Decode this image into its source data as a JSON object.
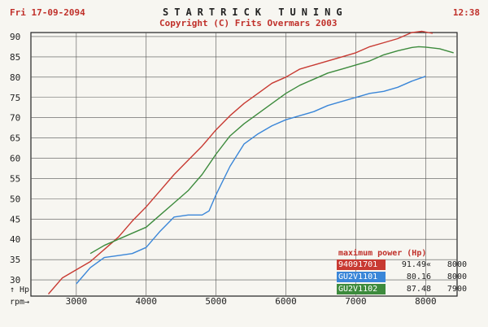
{
  "header": {
    "date": "Fri 17-09-2094",
    "time": "12:38",
    "title": "STARTRICK TUNING",
    "copyright": "Copyright (C) Frits Overmars 2003"
  },
  "chart_data": {
    "type": "line",
    "ylabel": "↑ Hp",
    "xlabel": "rpm→",
    "xlim": [
      2350,
      8450
    ],
    "ylim": [
      26,
      91
    ],
    "x_ticks": [
      3000,
      4000,
      5000,
      6000,
      7000,
      8000
    ],
    "y_ticks": [
      30,
      35,
      40,
      45,
      50,
      55,
      60,
      65,
      70,
      75,
      80,
      85,
      90
    ],
    "grid": true,
    "legend_placement": "bottom-right",
    "legend_title": "maximum power  (Hp)",
    "series": [
      {
        "name": "94091701",
        "max_power": "91.49«",
        "max_rpm": "8000",
        "color": "#c83a32",
        "x": [
          2600,
          2800,
          3000,
          3200,
          3400,
          3600,
          3800,
          4000,
          4200,
          4400,
          4600,
          4800,
          5000,
          5200,
          5400,
          5600,
          5800,
          6000,
          6200,
          6400,
          6600,
          6800,
          7000,
          7200,
          7400,
          7600,
          7800,
          7950,
          8100
        ],
        "y": [
          26.5,
          30.5,
          32.5,
          34.5,
          37.5,
          40.5,
          44.5,
          48,
          52,
          56,
          59.5,
          63,
          67,
          70.5,
          73.5,
          76,
          78.5,
          80,
          82,
          83,
          84,
          85,
          86,
          87.5,
          88.5,
          89.5,
          91,
          91.3,
          90.8
        ]
      },
      {
        "name": "GU2V1101",
        "max_power": "80.16",
        "max_rpm": "8000",
        "color": "#3a86d8",
        "x": [
          3000,
          3200,
          3400,
          3600,
          3800,
          4000,
          4200,
          4400,
          4600,
          4800,
          4900,
          5000,
          5200,
          5400,
          5600,
          5800,
          6000,
          6200,
          6400,
          6600,
          6800,
          7000,
          7200,
          7400,
          7600,
          7800,
          8000
        ],
        "y": [
          29,
          33,
          35.5,
          36,
          36.5,
          38,
          42,
          45.5,
          46,
          46,
          47,
          51,
          58,
          63.5,
          66,
          68,
          69.5,
          70.5,
          71.5,
          73,
          74,
          75,
          76,
          76.5,
          77.5,
          79,
          80.2
        ]
      },
      {
        "name": "GU2V1102",
        "max_power": "87.48",
        "max_rpm": "7900",
        "color": "#3d8b3d",
        "x": [
          3200,
          3400,
          3600,
          3800,
          4000,
          4200,
          4400,
          4600,
          4800,
          5000,
          5200,
          5400,
          5600,
          5800,
          6000,
          6200,
          6400,
          6600,
          6800,
          7000,
          7200,
          7400,
          7600,
          7800,
          7900,
          8000,
          8200,
          8400
        ],
        "y": [
          36.5,
          38.5,
          40,
          41.5,
          43,
          46,
          49,
          52,
          56,
          61,
          65.5,
          68.5,
          71,
          73.5,
          76,
          78,
          79.5,
          81,
          82,
          83,
          84,
          85.5,
          86.5,
          87.3,
          87.5,
          87.4,
          87,
          86
        ]
      }
    ]
  }
}
